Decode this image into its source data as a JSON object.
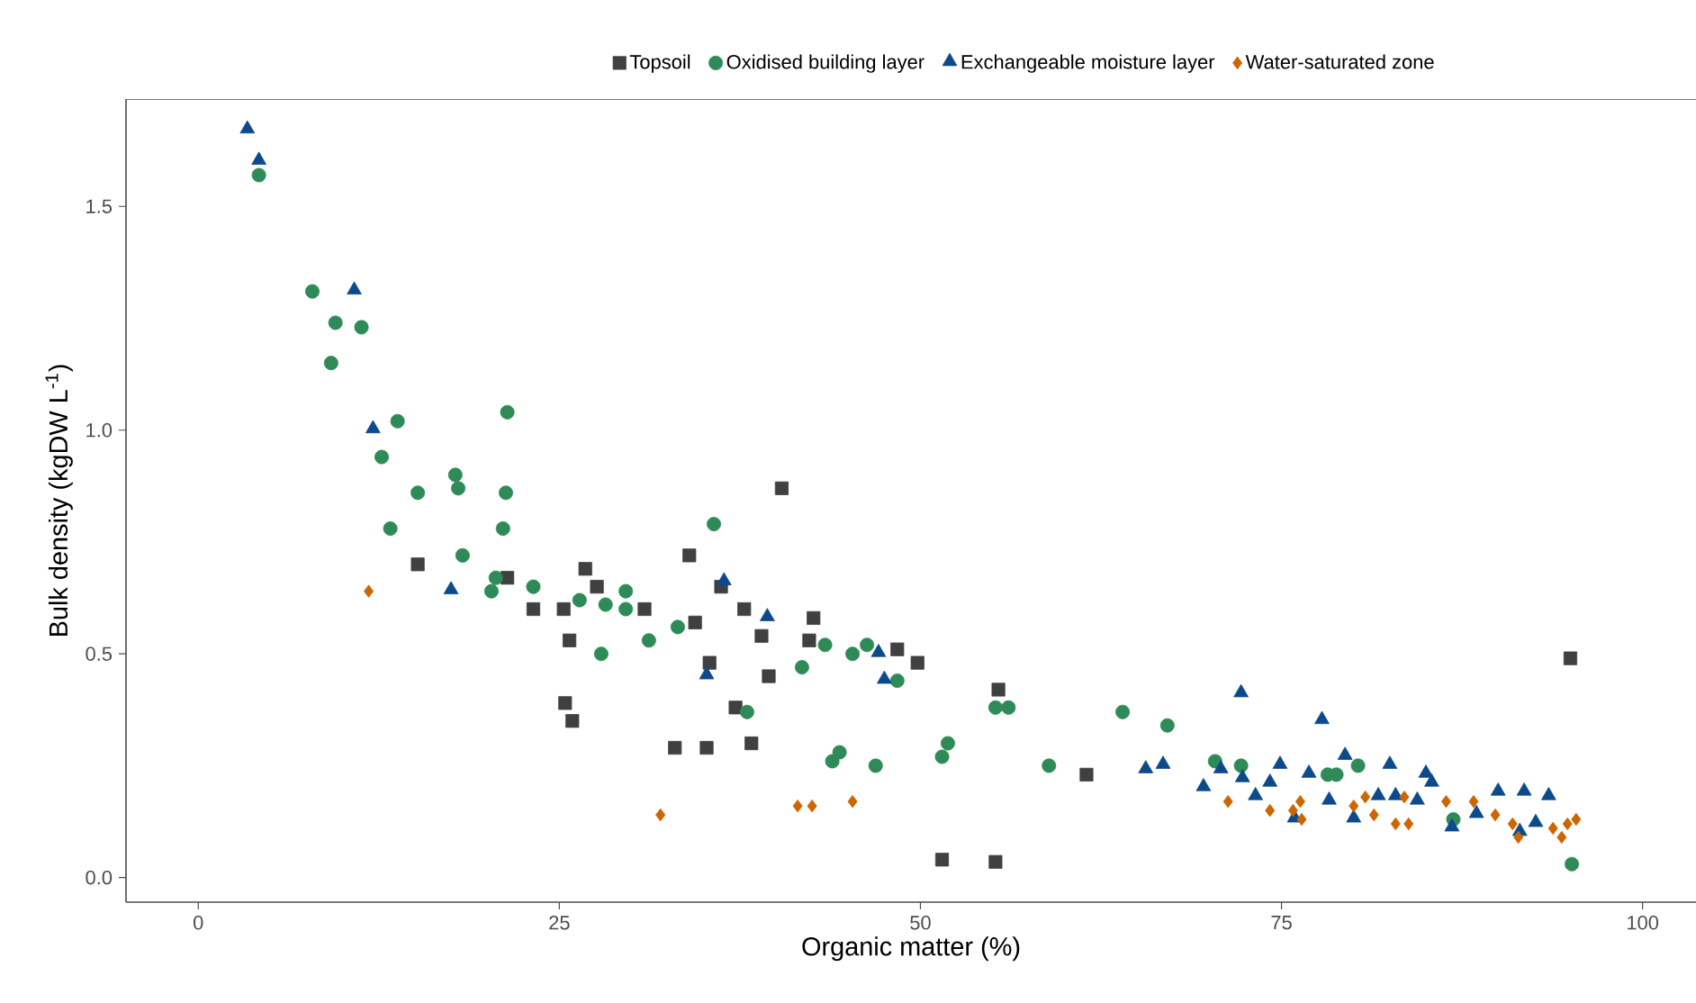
{
  "chart_data": {
    "type": "scatter",
    "xlabel": "Organic matter (%)",
    "ylabel": "Bulk density (kgDW L$^{-1}$)",
    "xlim": [
      -5,
      103.7
    ],
    "ylim": [
      -0.055,
      1.74
    ],
    "xticks": [
      0,
      25,
      50,
      75,
      100
    ],
    "yticks": [
      {
        "value": 0,
        "label": "0.0"
      },
      {
        "value": 0.5,
        "label": "0.5"
      },
      {
        "value": 1.0,
        "label": "1.0"
      },
      {
        "value": 1.5,
        "label": "1.5"
      }
    ],
    "grid": false,
    "legend": "top",
    "series": [
      {
        "name": "Topsoil",
        "color": "#404040",
        "marker": "square",
        "x": [
          15.2,
          21.4,
          23.2,
          25.3,
          25.7,
          26.8,
          27.6,
          30.9,
          34.0,
          34.4,
          36.2,
          37.8,
          39.0,
          35.4,
          39.5,
          25.4,
          25.9,
          33.0,
          35.2,
          37.2,
          38.3,
          40.4,
          42.6,
          42.3,
          48.4,
          49.8,
          55.4,
          61.5,
          51.5,
          55.2,
          95.0
        ],
        "values": [
          0.7,
          0.67,
          0.6,
          0.6,
          0.53,
          0.69,
          0.65,
          0.6,
          0.72,
          0.57,
          0.65,
          0.6,
          0.54,
          0.48,
          0.45,
          0.39,
          0.35,
          0.29,
          0.29,
          0.38,
          0.3,
          0.87,
          0.58,
          0.53,
          0.51,
          0.48,
          0.42,
          0.23,
          0.04,
          0.035,
          0.49
        ]
      },
      {
        "name": "Oxidised building layer",
        "color": "#2e8b57",
        "marker": "circle",
        "x": [
          4.2,
          7.9,
          9.5,
          11.3,
          9.2,
          13.8,
          21.4,
          12.7,
          17.8,
          18.0,
          15.2,
          21.3,
          21.1,
          13.3,
          18.3,
          20.6,
          20.3,
          23.2,
          35.7,
          26.4,
          28.2,
          29.6,
          29.6,
          33.2,
          31.2,
          27.9,
          38.0,
          43.4,
          45.3,
          46.3,
          48.4,
          41.8,
          44.4,
          43.9,
          46.9,
          51.9,
          51.5,
          55.2,
          56.1,
          58.9,
          64.0,
          67.1,
          70.4,
          72.2,
          78.2,
          78.8,
          80.3,
          86.9,
          95.1
        ],
        "values": [
          1.57,
          1.31,
          1.24,
          1.23,
          1.15,
          1.02,
          1.04,
          0.94,
          0.9,
          0.87,
          0.86,
          0.86,
          0.78,
          0.78,
          0.72,
          0.67,
          0.64,
          0.65,
          0.79,
          0.62,
          0.61,
          0.64,
          0.6,
          0.56,
          0.53,
          0.5,
          0.37,
          0.52,
          0.5,
          0.52,
          0.44,
          0.47,
          0.28,
          0.26,
          0.25,
          0.3,
          0.27,
          0.38,
          0.38,
          0.25,
          0.37,
          0.34,
          0.26,
          0.25,
          0.23,
          0.23,
          0.25,
          0.13,
          0.03
        ]
      },
      {
        "name": "Exchangeable moisture layer",
        "color": "#0d4a8c",
        "marker": "triangle",
        "x": [
          3.4,
          4.2,
          10.8,
          12.1,
          17.5,
          36.4,
          35.2,
          39.4,
          47.1,
          47.5,
          65.6,
          66.8,
          72.2,
          77.8,
          69.6,
          70.8,
          72.3,
          74.2,
          74.9,
          76.9,
          79.4,
          82.5,
          85.0,
          85.4,
          81.7,
          82.9,
          84.4,
          80.0,
          78.3,
          75.9,
          90.0,
          91.8,
          93.5,
          88.5,
          86.8,
          91.5,
          92.6,
          73.2
        ],
        "values": [
          1.67,
          1.6,
          1.31,
          1.0,
          0.64,
          0.66,
          0.45,
          0.58,
          0.5,
          0.44,
          0.24,
          0.25,
          0.41,
          0.35,
          0.2,
          0.24,
          0.22,
          0.21,
          0.25,
          0.23,
          0.27,
          0.25,
          0.23,
          0.21,
          0.18,
          0.18,
          0.17,
          0.13,
          0.17,
          0.13,
          0.19,
          0.19,
          0.18,
          0.14,
          0.11,
          0.1,
          0.12,
          0.18
        ]
      },
      {
        "name": "Water-saturated zone",
        "color": "#cc6600",
        "marker": "diamond",
        "x": [
          11.8,
          32.0,
          41.5,
          42.5,
          45.3,
          71.3,
          74.2,
          76.3,
          76.4,
          80.0,
          81.4,
          82.9,
          83.8,
          80.8,
          83.5,
          88.3,
          89.8,
          91.0,
          91.4,
          93.8,
          94.8,
          95.4,
          94.4,
          75.8,
          86.4
        ],
        "values": [
          0.64,
          0.14,
          0.16,
          0.16,
          0.17,
          0.17,
          0.15,
          0.17,
          0.13,
          0.16,
          0.14,
          0.12,
          0.12,
          0.18,
          0.18,
          0.17,
          0.14,
          0.12,
          0.09,
          0.11,
          0.12,
          0.13,
          0.09,
          0.15,
          0.17
        ]
      }
    ]
  }
}
